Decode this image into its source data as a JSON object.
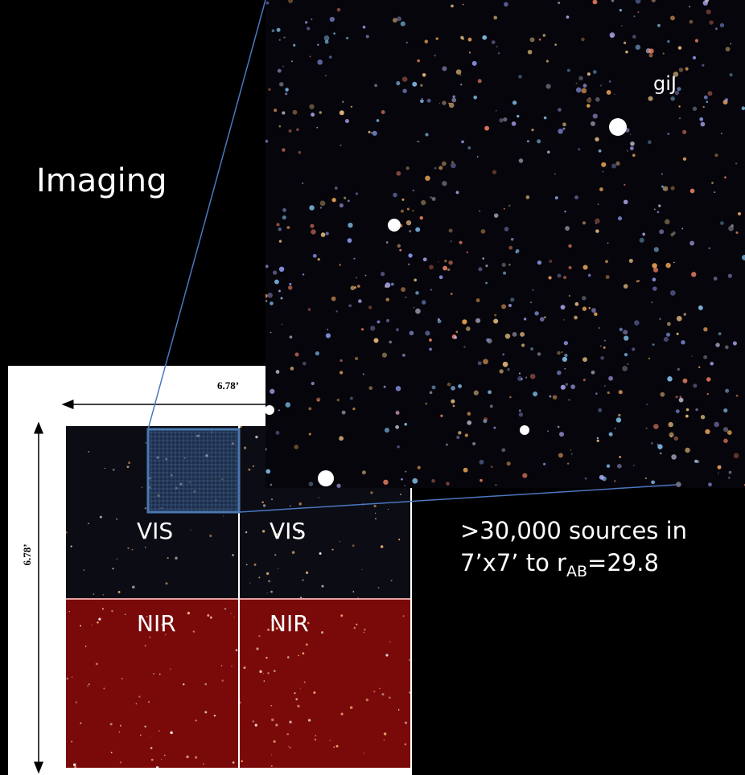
{
  "slide": {
    "title": "Imaging",
    "image_label": "giJ",
    "field": {
      "width_label": "6.78’",
      "height_label": "6.78’",
      "panels": [
        "VIS",
        "VIS",
        "NIR",
        "NIR"
      ]
    },
    "caption": {
      "line1": ">30,000 sources in",
      "line2_text": "7’x7’ to r",
      "line2_subscript": "AB",
      "line2_tail": "=29.8"
    }
  }
}
